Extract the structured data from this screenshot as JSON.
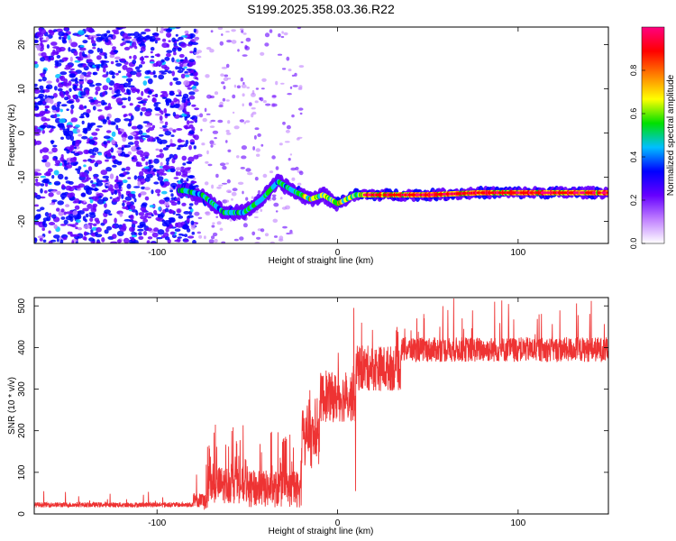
{
  "page": {
    "title": "S199.2025.358.03.36.R22"
  },
  "chart_data": [
    {
      "type": "heatmap",
      "name": "spectrogram",
      "xlabel": "Height of straight line (km)",
      "ylabel": "Frequency (Hz)",
      "xlim": [
        -168,
        150
      ],
      "ylim": [
        -25,
        24
      ],
      "xticks": [
        -100,
        0,
        100
      ],
      "yticks": [
        -20,
        -10,
        0,
        10,
        20
      ],
      "ridge": [
        {
          "x": -85,
          "y": -13
        },
        {
          "x": -75,
          "y": -14
        },
        {
          "x": -63,
          "y": -18
        },
        {
          "x": -52,
          "y": -18
        },
        {
          "x": -42,
          "y": -15
        },
        {
          "x": -33,
          "y": -11
        },
        {
          "x": -25,
          "y": -13
        },
        {
          "x": -15,
          "y": -15
        },
        {
          "x": -8,
          "y": -14
        },
        {
          "x": 0,
          "y": -16
        },
        {
          "x": 10,
          "y": -14
        },
        {
          "x": 50,
          "y": -14
        },
        {
          "x": 80,
          "y": -13.5
        },
        {
          "x": 150,
          "y": -13.5
        }
      ],
      "colorbar": {
        "label": "Normalized spectral amplitude",
        "ticks": [
          0.0,
          0.2,
          0.4,
          0.6,
          0.8
        ],
        "range": [
          0,
          1
        ],
        "colors": [
          "#ffffff",
          "#c080ff",
          "#6600ff",
          "#0000ff",
          "#00bfff",
          "#00e000",
          "#ffff00",
          "#ff8000",
          "#ff0000",
          "#ff0080"
        ]
      }
    },
    {
      "type": "line",
      "name": "snr",
      "xlabel": "Height of straight line (km)",
      "ylabel": "SNR (10 * v/v)",
      "xlim": [
        -168,
        150
      ],
      "ylim": [
        0,
        520
      ],
      "xticks": [
        -100,
        0,
        100
      ],
      "yticks": [
        0,
        100,
        200,
        300,
        400,
        500
      ],
      "color": "#ee3333",
      "segments": [
        {
          "from": -168,
          "to": -80,
          "mean": 22,
          "noise": 6,
          "spikes": 0.02,
          "spikeMax": 55
        },
        {
          "from": -80,
          "to": -72,
          "mean": 30,
          "noise": 20,
          "spikes": 0.1,
          "spikeMax": 120
        },
        {
          "from": -72,
          "to": -50,
          "mean": 70,
          "noise": 45,
          "spikes": 0.1,
          "spikeMax": 215
        },
        {
          "from": -50,
          "to": -20,
          "mean": 60,
          "noise": 45,
          "spikes": 0.08,
          "spikeMax": 200
        },
        {
          "from": -20,
          "to": -10,
          "mean": 180,
          "noise": 70,
          "spikes": 0.1,
          "spikeMax": 300
        },
        {
          "from": -10,
          "to": 10,
          "mean": 280,
          "noise": 60,
          "spikes": 0.06,
          "spikeMax": 400
        },
        {
          "from": 10,
          "to": 35,
          "mean": 350,
          "noise": 55,
          "spikes": 0.05,
          "spikeMax": 460
        },
        {
          "from": 35,
          "to": 150,
          "mean": 395,
          "noise": 30,
          "spikes": 0.05,
          "spikeMax": 520
        }
      ],
      "features": [
        {
          "x": 9,
          "y": 495
        },
        {
          "x": 10,
          "y": 55
        },
        {
          "x": 87,
          "y": 510
        }
      ]
    }
  ]
}
